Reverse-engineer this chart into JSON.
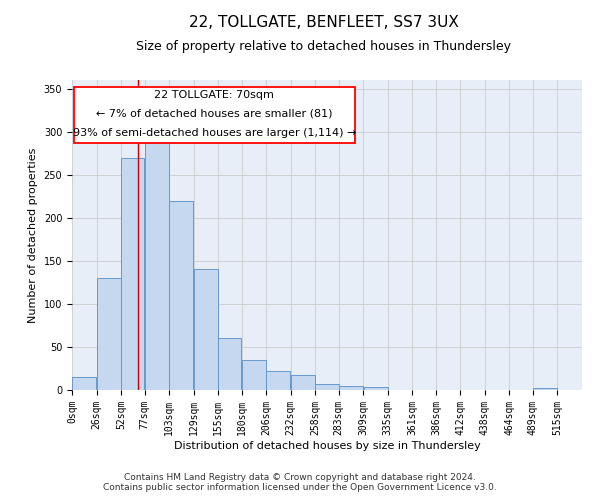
{
  "title": "22, TOLLGATE, BENFLEET, SS7 3UX",
  "subtitle": "Size of property relative to detached houses in Thundersley",
  "xlabel": "Distribution of detached houses by size in Thundersley",
  "ylabel": "Number of detached properties",
  "annotation_title": "22 TOLLGATE: 70sqm",
  "annotation_line1": "← 7% of detached houses are smaller (81)",
  "annotation_line2": "93% of semi-detached houses are larger (1,114) →",
  "bar_left_edges": [
    0,
    26,
    52,
    77,
    103,
    129,
    155,
    180,
    206,
    232,
    258,
    283,
    309,
    335,
    361,
    386,
    412,
    438,
    464,
    489
  ],
  "bar_widths": [
    26,
    26,
    25,
    26,
    26,
    26,
    25,
    26,
    26,
    26,
    25,
    26,
    26,
    26,
    25,
    26,
    26,
    26,
    25,
    26
  ],
  "bar_heights": [
    15,
    130,
    270,
    290,
    220,
    140,
    60,
    35,
    22,
    17,
    7,
    5,
    3,
    0,
    0,
    0,
    0,
    0,
    0,
    2
  ],
  "bar_color": "#c5d8ef",
  "bar_edge_color": "#6699cc",
  "vline_color": "#cc0000",
  "vline_x": 70,
  "ylim": [
    0,
    360
  ],
  "yticks": [
    0,
    50,
    100,
    150,
    200,
    250,
    300,
    350
  ],
  "xlim": [
    0,
    541
  ],
  "xtick_labels": [
    "0sqm",
    "26sqm",
    "52sqm",
    "77sqm",
    "103sqm",
    "129sqm",
    "155sqm",
    "180sqm",
    "206sqm",
    "232sqm",
    "258sqm",
    "283sqm",
    "309sqm",
    "335sqm",
    "361sqm",
    "386sqm",
    "412sqm",
    "438sqm",
    "464sqm",
    "489sqm",
    "515sqm"
  ],
  "xtick_positions": [
    0,
    26,
    52,
    77,
    103,
    129,
    155,
    180,
    206,
    232,
    258,
    283,
    309,
    335,
    361,
    386,
    412,
    438,
    464,
    489,
    515
  ],
  "grid_color": "#cccccc",
  "bg_color": "#e8eef8",
  "footer_line1": "Contains HM Land Registry data © Crown copyright and database right 2024.",
  "footer_line2": "Contains public sector information licensed under the Open Government Licence v3.0.",
  "title_fontsize": 11,
  "subtitle_fontsize": 9,
  "axis_label_fontsize": 8,
  "tick_fontsize": 7,
  "annotation_fontsize": 8,
  "footer_fontsize": 6.5
}
